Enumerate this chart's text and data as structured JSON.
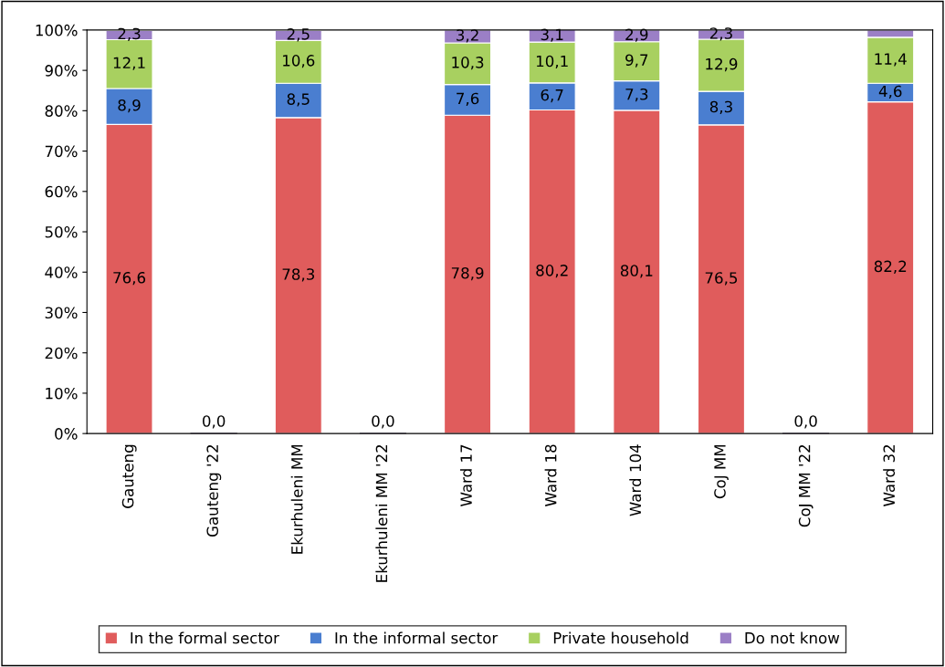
{
  "chart_data": {
    "type": "bar",
    "stacked": true,
    "categories": [
      "Gauteng",
      "Gauteng '22",
      "Ekurhuleni MM",
      "Ekurhuleni MM '22",
      "Ward 17",
      "Ward 18",
      "Ward 104",
      "CoJ MM",
      "CoJ MM '22",
      "Ward 32"
    ],
    "series": [
      {
        "name": "In the formal sector",
        "color": "#e05c5c",
        "values": [
          76.6,
          0,
          78.3,
          0,
          78.9,
          80.2,
          80.1,
          76.5,
          0,
          82.2
        ],
        "value_labels": [
          "76,6",
          "0,0",
          "78,3",
          "0,0",
          "78,9",
          "80,2",
          "80,1",
          "76,5",
          "0,0",
          "82,2"
        ]
      },
      {
        "name": "In the informal sector",
        "color": "#4a7ed0",
        "values": [
          8.9,
          null,
          8.5,
          null,
          7.6,
          6.7,
          7.3,
          8.3,
          null,
          4.6
        ],
        "value_labels": [
          "8,9",
          null,
          "8,5",
          null,
          "7,6",
          "6,7",
          "7,3",
          "8,3",
          null,
          "4,6"
        ]
      },
      {
        "name": "Private household",
        "color": "#a8d060",
        "values": [
          12.1,
          null,
          10.6,
          null,
          10.3,
          10.1,
          9.7,
          12.9,
          null,
          11.4
        ],
        "value_labels": [
          "12,1",
          null,
          "10,6",
          null,
          "10,3",
          "10,1",
          "9,7",
          "12,9",
          null,
          "11,4"
        ]
      },
      {
        "name": "Do not know",
        "color": "#9b7fc6",
        "values": [
          2.3,
          null,
          2.5,
          null,
          3.2,
          3.1,
          2.9,
          2.3,
          null,
          1.8
        ],
        "value_labels": [
          "2,3",
          null,
          "2,5",
          null,
          "3,2",
          "3,1",
          "2,9",
          "2,3",
          null,
          null
        ]
      }
    ],
    "ylim": [
      0,
      100
    ],
    "yticks": [
      {
        "value": 0,
        "label": "0%"
      },
      {
        "value": 10,
        "label": "10%"
      },
      {
        "value": 20,
        "label": "20%"
      },
      {
        "value": 30,
        "label": "30%"
      },
      {
        "value": 40,
        "label": "40%"
      },
      {
        "value": 50,
        "label": "50%"
      },
      {
        "value": 60,
        "label": "60%"
      },
      {
        "value": 70,
        "label": "70%"
      },
      {
        "value": 80,
        "label": "80%"
      },
      {
        "value": 90,
        "label": "90%"
      },
      {
        "value": 100,
        "label": "100%"
      }
    ],
    "grid": false,
    "legend": "bottom"
  }
}
